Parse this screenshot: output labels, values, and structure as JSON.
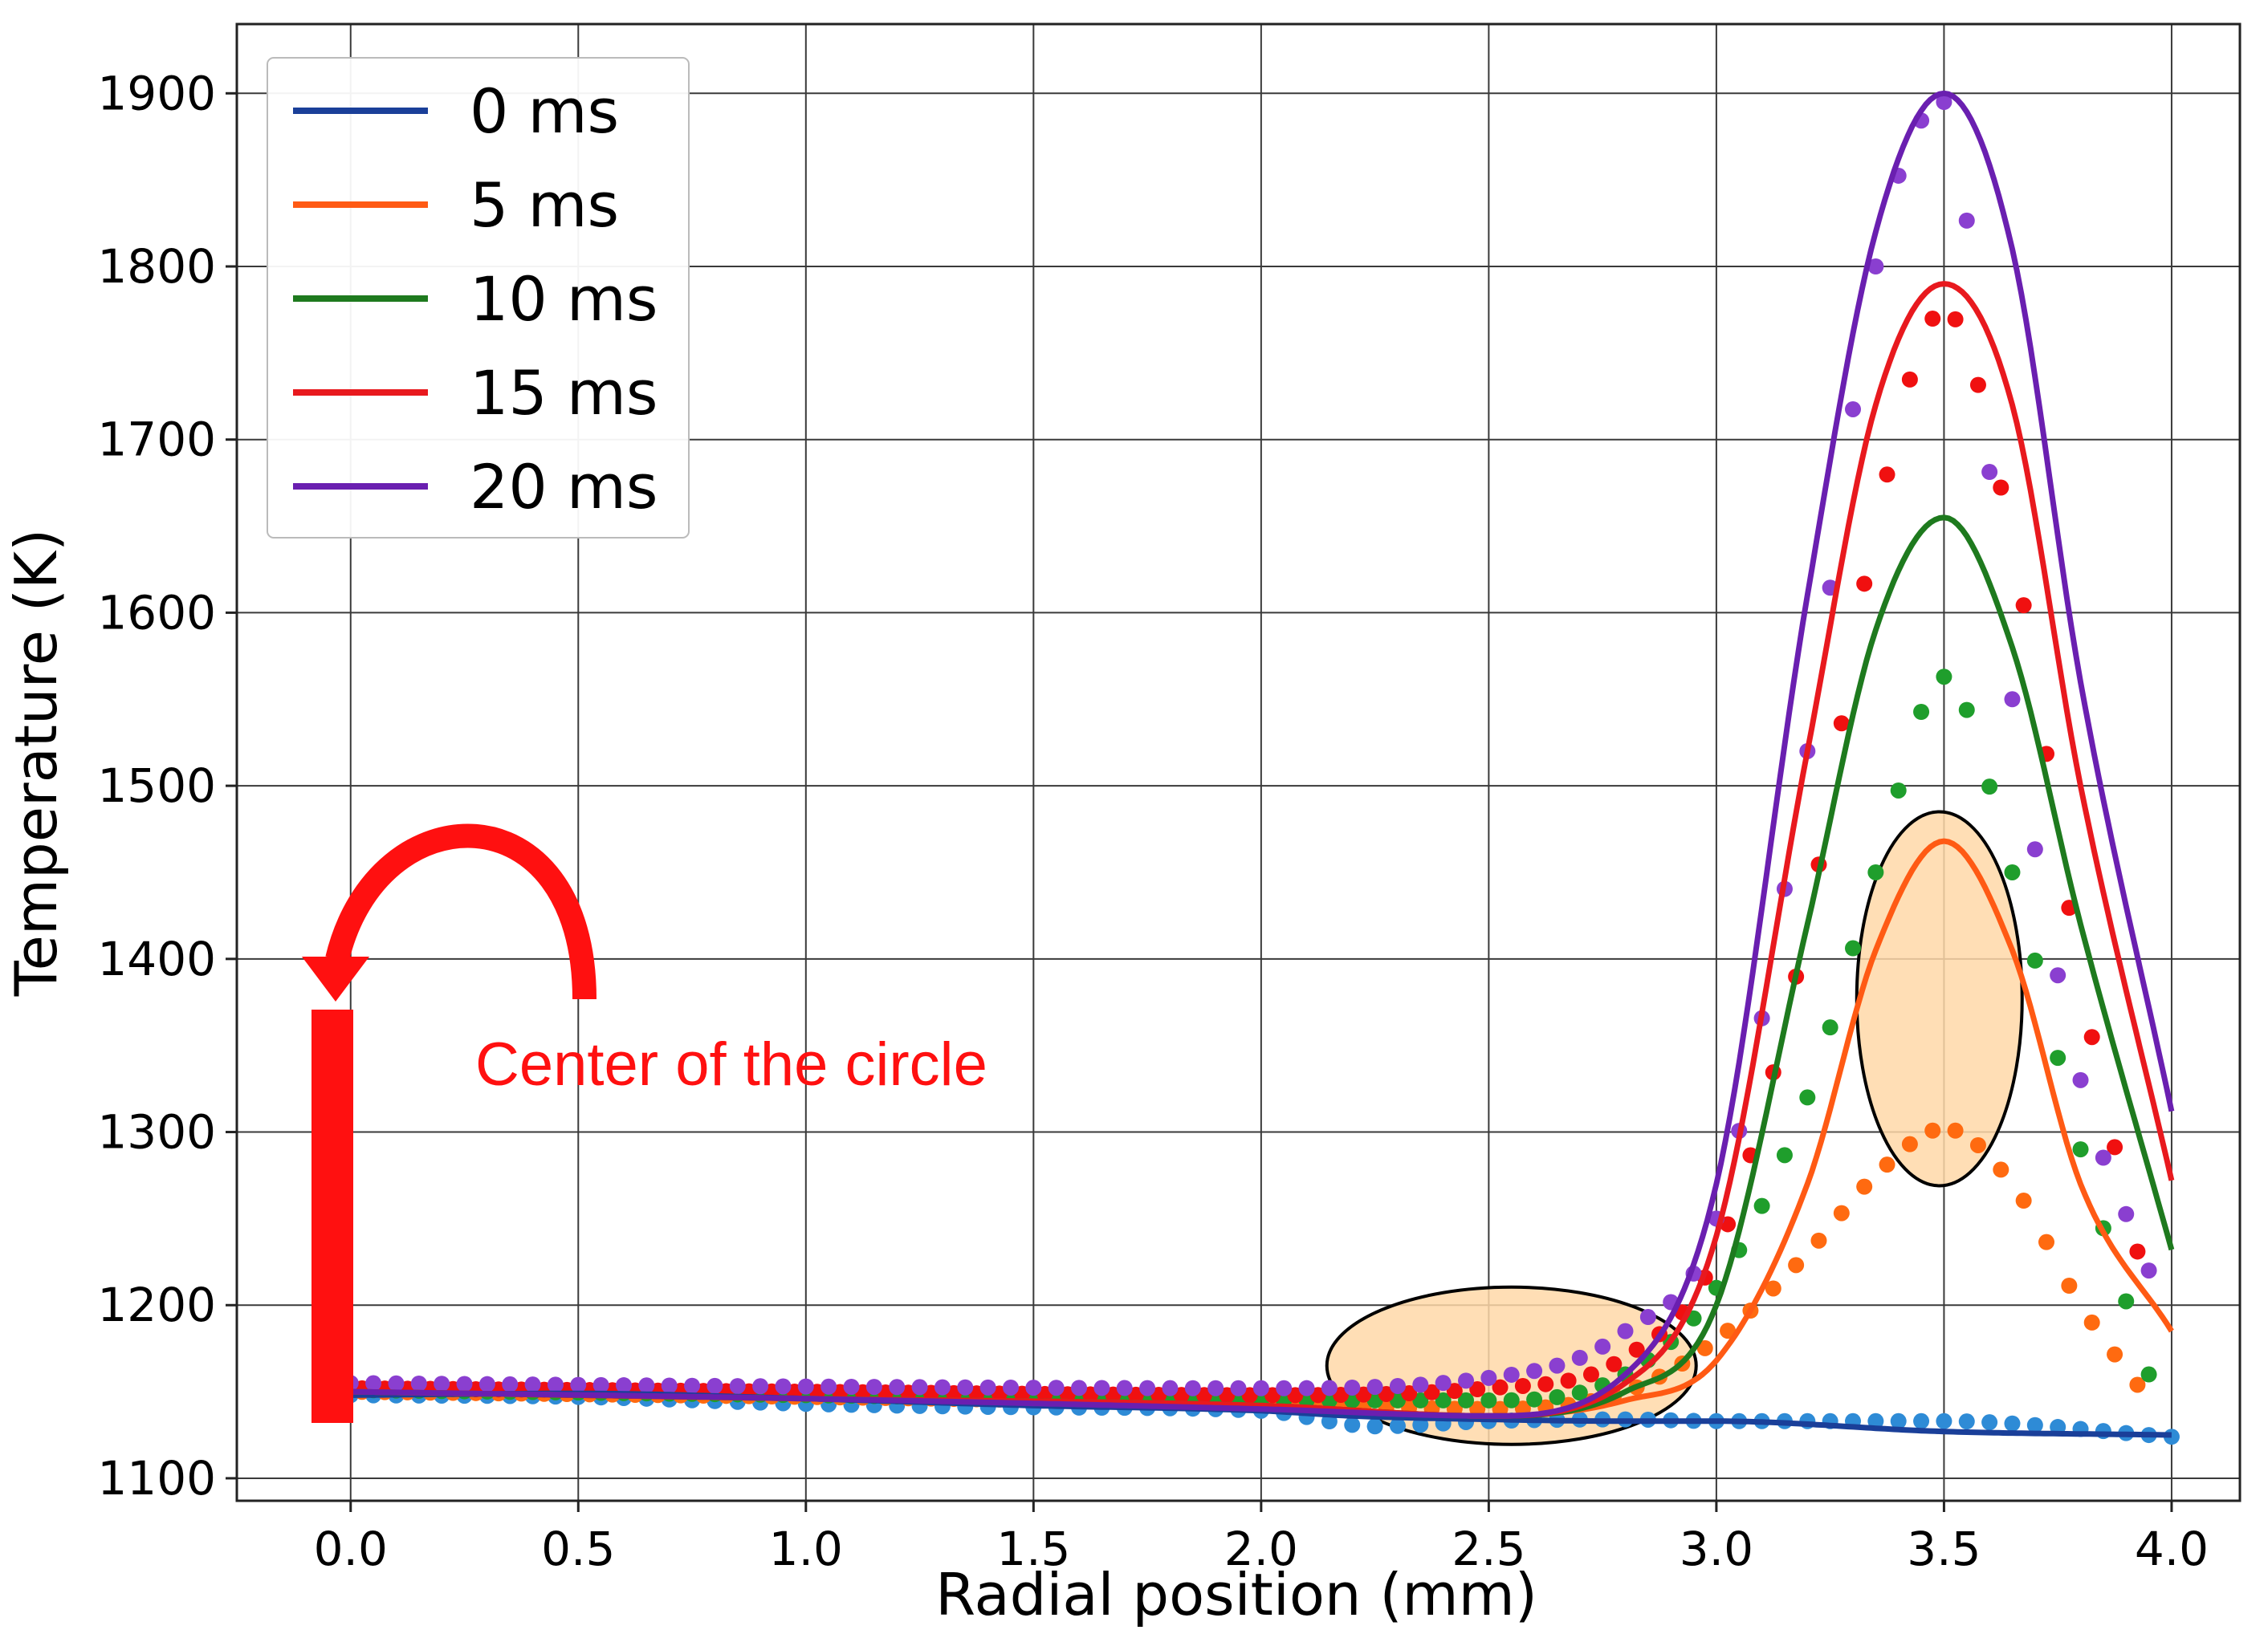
{
  "chart_data": {
    "type": "line",
    "xlabel": "Radial position (mm)",
    "ylabel": "Temperature (K)",
    "xlim": [
      -0.25,
      4.15
    ],
    "ylim": [
      1087,
      1940
    ],
    "xticks": [
      0.0,
      0.5,
      1.0,
      1.5,
      2.0,
      2.5,
      3.0,
      3.5,
      4.0
    ],
    "xtick_labels": [
      "0.0",
      "0.5",
      "1.0",
      "1.5",
      "2.0",
      "2.5",
      "3.0",
      "3.5",
      "4.0"
    ],
    "yticks": [
      1100,
      1200,
      1300,
      1400,
      1500,
      1600,
      1700,
      1800,
      1900
    ],
    "ytick_labels": [
      "1100",
      "1200",
      "1300",
      "1400",
      "1500",
      "1600",
      "1700",
      "1800",
      "1900"
    ],
    "grid": true,
    "legend_position": "top-left",
    "series": [
      {
        "name": "0 ms",
        "color": "#1a3f99",
        "dot_color": "#2e8bd6",
        "line": {
          "x": [
            0.0,
            0.5,
            1.0,
            1.5,
            2.0,
            2.2,
            2.5,
            2.8,
            3.0,
            3.5,
            4.0
          ],
          "y": [
            1148,
            1149,
            1146,
            1142,
            1139,
            1136,
            1134,
            1133,
            1133,
            1127,
            1125
          ]
        },
        "points": {
          "x": [
            0.0,
            0.5,
            1.0,
            1.5,
            2.0,
            2.25,
            2.5,
            2.8,
            3.0,
            3.5,
            4.0
          ],
          "y": [
            1148,
            1147,
            1143,
            1141,
            1139,
            1130,
            1133,
            1134,
            1133,
            1133,
            1124
          ]
        }
      },
      {
        "name": "5 ms",
        "color": "#ff5a14",
        "dot_color": "#ff6a10",
        "line": {
          "x": [
            0.0,
            1.0,
            2.0,
            2.5,
            2.8,
            3.0,
            3.2,
            3.35,
            3.5,
            3.65,
            3.8,
            4.0
          ],
          "y": [
            1150,
            1146,
            1142,
            1136,
            1145,
            1168,
            1270,
            1405,
            1468,
            1405,
            1270,
            1185
          ]
        },
        "points": {
          "x": [
            0.0,
            1.0,
            2.0,
            2.5,
            2.8,
            3.0,
            3.2,
            3.35,
            3.5,
            3.65,
            3.8,
            3.95
          ],
          "y": [
            1150,
            1147,
            1143,
            1140,
            1150,
            1180,
            1230,
            1275,
            1302,
            1270,
            1200,
            1145
          ]
        }
      },
      {
        "name": "10 ms",
        "color": "#1e7a1e",
        "dot_color": "#1f9e2c",
        "line": {
          "x": [
            0.0,
            1.0,
            2.0,
            2.5,
            2.8,
            3.0,
            3.2,
            3.35,
            3.5,
            3.65,
            3.8,
            4.0
          ],
          "y": [
            1150,
            1146,
            1142,
            1136,
            1150,
            1200,
            1420,
            1590,
            1655,
            1580,
            1420,
            1232
          ]
        },
        "points": {
          "x": [
            0.0,
            1.0,
            2.0,
            2.5,
            2.8,
            3.0,
            3.2,
            3.35,
            3.5,
            3.65,
            3.8,
            3.95
          ],
          "y": [
            1151,
            1148,
            1145,
            1145,
            1160,
            1210,
            1320,
            1450,
            1563,
            1450,
            1290,
            1160
          ]
        }
      },
      {
        "name": "15 ms",
        "color": "#e8191e",
        "dot_color": "#f01010",
        "line": {
          "x": [
            0.0,
            1.0,
            2.0,
            2.5,
            2.8,
            3.0,
            3.2,
            3.35,
            3.5,
            3.65,
            3.8,
            4.0
          ],
          "y": [
            1150,
            1146,
            1142,
            1136,
            1155,
            1240,
            1520,
            1720,
            1790,
            1720,
            1500,
            1272
          ]
        },
        "points": {
          "x": [
            0.0,
            1.0,
            2.0,
            2.5,
            2.8,
            3.0,
            3.2,
            3.35,
            3.5,
            3.65,
            3.8,
            3.95
          ],
          "y": [
            1152,
            1150,
            1148,
            1152,
            1170,
            1230,
            1420,
            1650,
            1775,
            1640,
            1390,
            1200
          ]
        }
      },
      {
        "name": "20 ms",
        "color": "#6a1fb0",
        "dot_color": "#8a3fd0",
        "line": {
          "x": [
            0.0,
            1.0,
            2.0,
            2.5,
            2.8,
            3.0,
            3.2,
            3.35,
            3.5,
            3.65,
            3.8,
            4.0
          ],
          "y": [
            1150,
            1146,
            1140,
            1136,
            1160,
            1270,
            1610,
            1820,
            1900,
            1810,
            1560,
            1312
          ]
        },
        "points": {
          "x": [
            0.0,
            1.0,
            2.0,
            2.5,
            2.8,
            3.0,
            3.2,
            3.35,
            3.5,
            3.65,
            3.8,
            3.95
          ],
          "y": [
            1155,
            1153,
            1152,
            1158,
            1185,
            1250,
            1520,
            1800,
            1895,
            1550,
            1330,
            1220
          ]
        }
      }
    ],
    "annotations": {
      "center_label": "Center of the circle",
      "center_color": "#ff1010",
      "highlight_fill": "#ffd8a8",
      "highlight_stroke": "#000000"
    }
  }
}
